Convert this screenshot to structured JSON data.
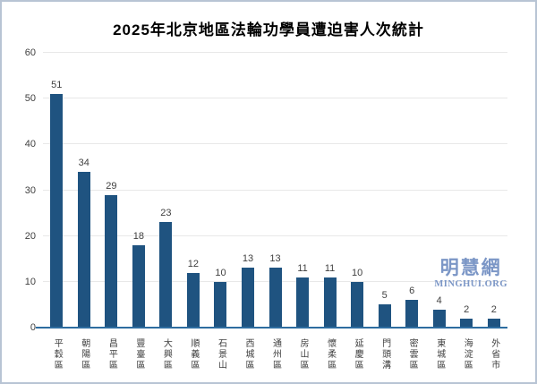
{
  "chart_data": {
    "type": "bar",
    "title": "2025年北京地區法輪功學員遭迫害人次統計",
    "categories": [
      "平穀區",
      "朝陽區",
      "昌平區",
      "豐臺區",
      "大興區",
      "順義區",
      "石景山",
      "西城區",
      "通州區",
      "房山區",
      "懷柔區",
      "延慶區",
      "門頭溝",
      "密雲區",
      "東城區",
      "海淀區",
      "外省市"
    ],
    "values": [
      51,
      34,
      29,
      18,
      23,
      12,
      10,
      13,
      13,
      11,
      11,
      10,
      5,
      6,
      4,
      2,
      2
    ],
    "xlabel": "",
    "ylabel": "",
    "ylim": [
      0,
      60
    ],
    "yticks": [
      0,
      10,
      20,
      30,
      40,
      50,
      60
    ],
    "grid": true,
    "legend": "none",
    "bar_color": "#1f5380",
    "axis_line_color": "#2e6da0",
    "gridline_color": "#e8e8e8",
    "label_color": "#404040"
  },
  "watermark": {
    "cjk": "明慧網",
    "latin": "MINGHUI.ORG",
    "color": "#7b96c6"
  }
}
